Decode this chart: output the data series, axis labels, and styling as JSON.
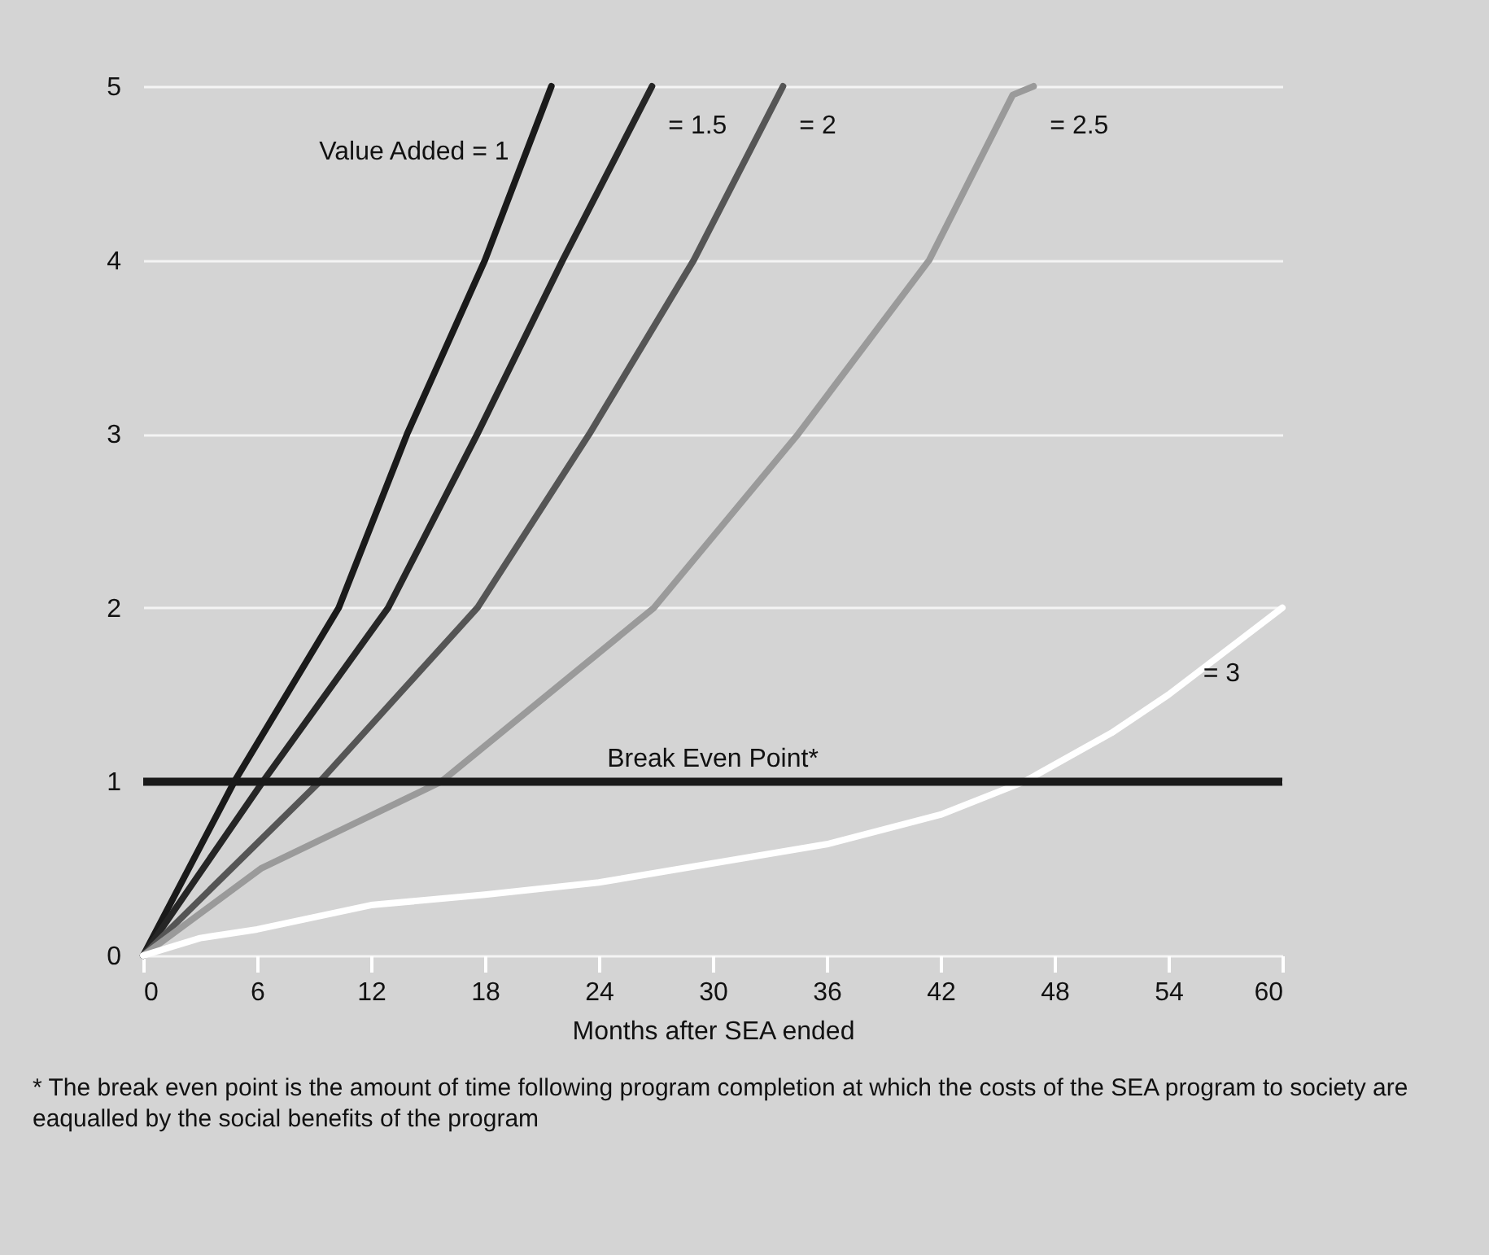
{
  "chart_data": {
    "type": "line",
    "xlabel": "Months after SEA ended",
    "annotations": [
      "* The break even point is the amount of time following program completion at which the costs of the SEA program to society are eaqualled by the social benefits of the program"
    ],
    "xlim": [
      0,
      60
    ],
    "xticks": [
      0,
      6,
      12,
      18,
      24,
      30,
      36,
      42,
      48,
      54,
      60
    ],
    "ylim": [
      0,
      5
    ],
    "yticks": [
      0,
      1,
      2,
      3,
      4,
      5
    ],
    "grid": "y",
    "legend": false,
    "marker": "none",
    "line_style": "solid",
    "ref_lines": [
      {
        "axis": "y",
        "value": 1,
        "label": "Break Even Point*",
        "color": "#1a1a1a"
      }
    ],
    "series": [
      {
        "name": "Value Added = 1",
        "color": "#1a1a1a",
        "x": [
          0,
          4.8,
          10.3,
          13.9,
          18.0,
          21.5
        ],
        "values": [
          0,
          1,
          2,
          3,
          4,
          5
        ]
      },
      {
        "name": "= 1.5",
        "color": "#262626",
        "x": [
          0,
          6.3,
          12.9,
          17.6,
          22.1,
          26.8
        ],
        "values": [
          0,
          1,
          2,
          3,
          4,
          5
        ]
      },
      {
        "name": "= 2",
        "color": "#555555",
        "x": [
          0,
          9.3,
          17.6,
          23.5,
          29.0,
          33.7
        ],
        "values": [
          0,
          1,
          2,
          3,
          4,
          5
        ]
      },
      {
        "name": "= 2.5",
        "color": "#9a9a9a",
        "x": [
          0,
          6.2,
          15.7,
          26.9,
          34.5,
          41.4,
          45.8,
          46.9
        ],
        "values": [
          0,
          0.5,
          1,
          2,
          3,
          4,
          4.95,
          5
        ]
      },
      {
        "name": "= 3",
        "color": "#ffffff",
        "x": [
          0,
          3,
          6,
          12,
          18,
          24,
          30,
          36,
          42,
          46.4,
          51,
          54,
          60
        ],
        "values": [
          0,
          0.1,
          0.15,
          0.29,
          0.35,
          0.42,
          0.53,
          0.64,
          0.81,
          1,
          1.28,
          1.5,
          2
        ]
      }
    ]
  }
}
